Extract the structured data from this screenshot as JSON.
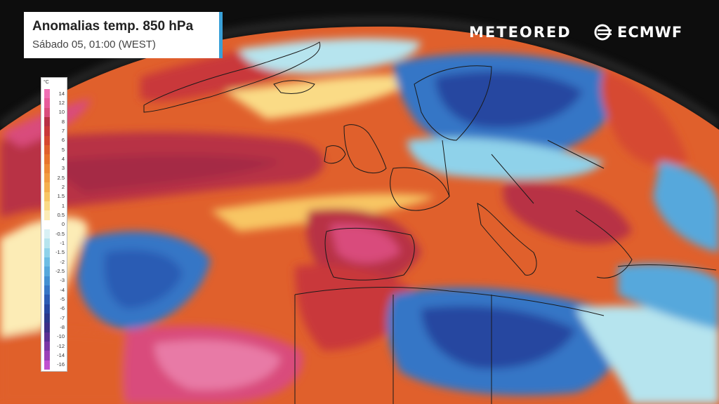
{
  "title": {
    "main": "Anomalias temp. 850 hPa",
    "sub": "Sábado 05, 01:00 (WEST)"
  },
  "brand": {
    "meteored": "METEORED",
    "ecmwf": "ECMWF"
  },
  "legend": {
    "unit": "°C",
    "labels": [
      "14",
      "12",
      "10",
      "8",
      "7",
      "6",
      "5",
      "4",
      "3",
      "2.5",
      "2",
      "1.5",
      "1",
      "0.5",
      "0",
      "-0.5",
      "-1",
      "-1.5",
      "-2",
      "-2.5",
      "-3",
      "-4",
      "-5",
      "-6",
      "-7",
      "-8",
      "-10",
      "-12",
      "-14",
      "-16"
    ],
    "colors": [
      "#f06fb4",
      "#e85a9a",
      "#d94c7c",
      "#b83045",
      "#c9383a",
      "#d64830",
      "#e0602c",
      "#e8742c",
      "#ee8a34",
      "#f29c40",
      "#f5b04e",
      "#f8c664",
      "#fadb86",
      "#fcecb6",
      "#ffffff",
      "#d8f0f4",
      "#b6e4ee",
      "#8fd2ea",
      "#6dbde4",
      "#56a8dc",
      "#4390d2",
      "#3676c6",
      "#2c5cb4",
      "#2646a0",
      "#2b388c",
      "#3c2f88",
      "#5a2f94",
      "#7a36a6",
      "#9a40b8",
      "#c050d0"
    ]
  },
  "colors": {
    "land_line": "#1a1a1a",
    "accent": "#3aa0d8"
  }
}
